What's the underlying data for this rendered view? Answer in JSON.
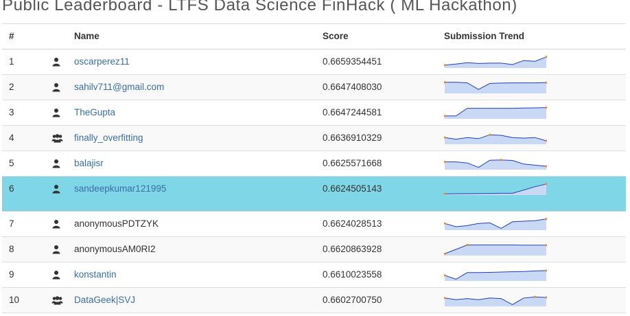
{
  "page": {
    "title": "Public Leaderboard - LTFS Data Science FinHack ( ML Hackathon)"
  },
  "table": {
    "headers": {
      "rank": "#",
      "name": "Name",
      "score": "Score",
      "trend": "Submission Trend"
    },
    "rows": [
      {
        "rank": "1",
        "name": "oscarperez11",
        "score": "0.6659354451",
        "icon": "user-icon",
        "link": true,
        "trend": [
          0.2,
          0.3,
          0.42,
          0.35,
          0.38,
          0.38,
          0.25,
          0.62,
          0.55,
          0.95
        ]
      },
      {
        "rank": "2",
        "name": "sahilv711@gmail.com",
        "score": "0.6647408030",
        "icon": "user-icon",
        "link": true,
        "trend": [
          0.95,
          0.95,
          0.9,
          0.3,
          0.85,
          0.88,
          0.9,
          0.9,
          0.9,
          0.92
        ]
      },
      {
        "rank": "3",
        "name": "TheGupta",
        "score": "0.6647244581",
        "icon": "user-icon",
        "link": true,
        "trend": [
          0.2,
          0.2,
          0.9,
          0.9,
          0.9,
          0.9,
          0.9,
          0.92,
          0.94,
          0.96
        ]
      },
      {
        "rank": "4",
        "name": "finally_overfitting",
        "score": "0.6636910329",
        "icon": "users-icon",
        "link": true,
        "trend": [
          0.55,
          0.4,
          0.55,
          0.45,
          0.8,
          0.75,
          0.55,
          0.5,
          0.55,
          0.25
        ]
      },
      {
        "rank": "5",
        "name": "balajisr",
        "score": "0.6625571668",
        "icon": "user-icon",
        "link": true,
        "trend": [
          0.65,
          0.65,
          0.55,
          0.15,
          0.8,
          0.82,
          0.78,
          0.45,
          0.35,
          0.25
        ]
      },
      {
        "rank": "6",
        "name": "sandeepkumar121995",
        "score": "0.6624505143",
        "icon": "user-icon",
        "link": true,
        "trend": [
          0.05,
          0.06,
          0.07,
          0.08,
          0.09,
          0.1,
          0.1,
          0.4,
          0.7,
          0.95
        ],
        "highlight": true
      },
      {
        "rank": "7",
        "name": "anonymousPDTZYK",
        "score": "0.6624028513",
        "icon": "user-icon",
        "link": false,
        "trend": [
          0.55,
          0.25,
          0.35,
          0.55,
          0.6,
          0.1,
          0.7,
          0.75,
          0.8,
          0.95
        ]
      },
      {
        "rank": "8",
        "name": "anonymousAM0RI2",
        "score": "0.6620863928",
        "icon": "user-icon",
        "link": false,
        "trend": [
          0.1,
          0.5,
          0.9,
          0.9,
          0.9,
          0.9,
          0.9,
          0.88,
          0.88,
          0.88
        ]
      },
      {
        "rank": "9",
        "name": "konstantin",
        "score": "0.6610023558",
        "icon": "user-icon",
        "link": true,
        "trend": [
          0.45,
          0.1,
          0.7,
          0.7,
          0.72,
          0.75,
          0.78,
          0.8,
          0.85,
          0.88
        ]
      },
      {
        "rank": "10",
        "name": "DataGeek|SVJ",
        "score": "0.6602700750",
        "icon": "users-icon",
        "link": true,
        "trend": [
          0.7,
          0.55,
          0.65,
          0.55,
          0.7,
          0.65,
          0.1,
          0.7,
          0.8,
          0.75
        ]
      }
    ]
  },
  "colors": {
    "trend_line": "#1f3fb8",
    "trend_fill": "#c9d9f5",
    "trend_point": "#f08a24",
    "link": "#3a6ea8",
    "highlight": "#7fd6e6"
  }
}
